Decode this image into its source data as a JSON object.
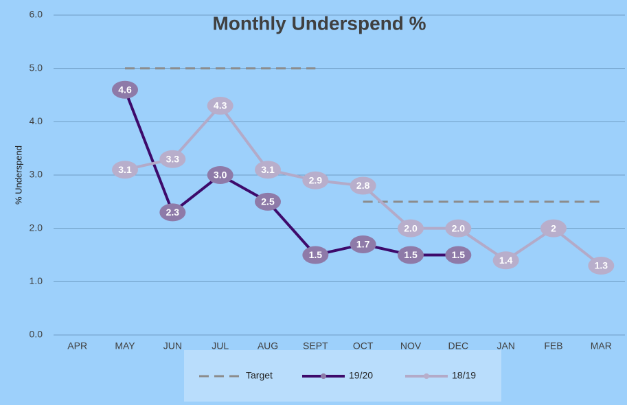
{
  "chart_data": {
    "type": "line",
    "title": "Monthly Underspend %",
    "y_label": "% Underspend",
    "categories": [
      "APR",
      "MAY",
      "JUN",
      "JUL",
      "AUG",
      "SEPT",
      "OCT",
      "NOV",
      "DEC",
      "JAN",
      "FEB",
      "MAR"
    ],
    "ylim": [
      0,
      6
    ],
    "yticks": [
      {
        "value": 0,
        "label": "0.0"
      },
      {
        "value": 1,
        "label": "1.0"
      },
      {
        "value": 2,
        "label": "2.0"
      },
      {
        "value": 3,
        "label": "3.0"
      },
      {
        "value": 4,
        "label": "4.0"
      },
      {
        "value": 5,
        "label": "5.0"
      },
      {
        "value": 6,
        "label": "6.0"
      }
    ],
    "grid": true,
    "legend": "bottom",
    "series": [
      {
        "name": "Target",
        "color": "#8c8c8c",
        "dashed": true,
        "values": [
          null,
          5,
          5,
          5,
          5,
          5,
          null,
          null,
          null,
          null,
          null,
          null
        ]
      },
      {
        "color": "#8c8c8c",
        "dashed": true,
        "values": [
          null,
          null,
          null,
          null,
          null,
          null,
          2.5,
          2.5,
          2.5,
          2.5,
          2.5,
          2.5
        ]
      },
      {
        "name": "19/20",
        "color": "#3d0a6b",
        "marker_color": "#8e7aa8",
        "values": [
          null,
          4.6,
          2.3,
          3,
          2.5,
          1.5,
          1.7,
          1.5,
          1.5,
          null,
          null,
          null
        ],
        "value_labels": [
          null,
          "4.6",
          "2.3",
          "3.0",
          "2.5",
          "1.5",
          "1.7",
          "1.5",
          "1.5",
          null,
          null,
          null
        ]
      },
      {
        "name": "18/19",
        "color": "#b3aac8",
        "marker_color": "#b8aecb",
        "values": [
          null,
          3.1,
          3.3,
          4.3,
          3.1,
          2.9,
          2.8,
          2,
          2,
          1.4,
          2,
          1.3
        ],
        "value_labels": [
          null,
          "3.1",
          "3.3",
          "4.3",
          "3.1",
          "2.9",
          "2.8",
          "2.0",
          "2.0",
          "1.4",
          "2",
          "1.3"
        ]
      }
    ]
  }
}
